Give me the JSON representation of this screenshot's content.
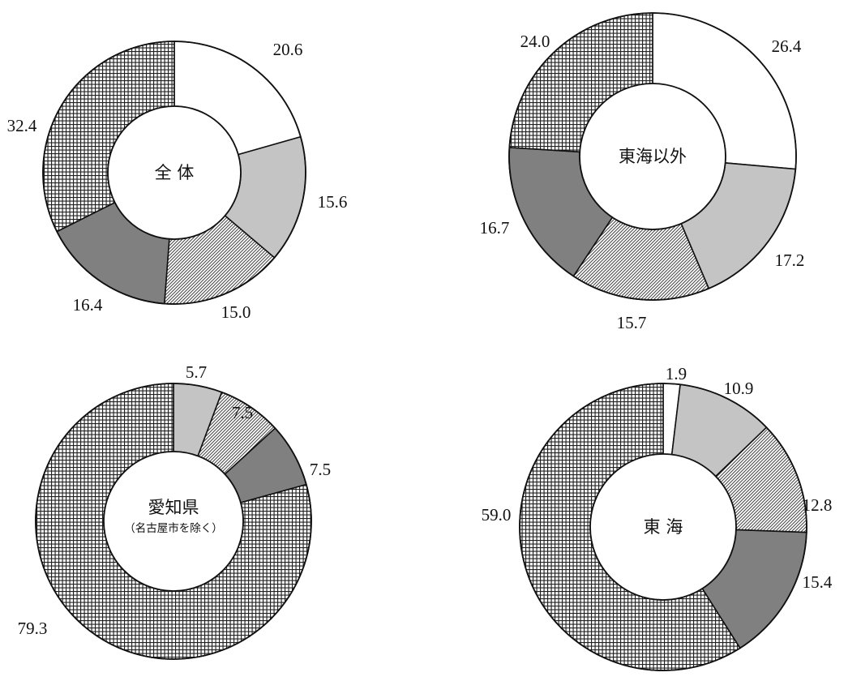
{
  "chart_data": [
    {
      "type": "pie",
      "title": "",
      "center_label": "全 体",
      "center_sublabel": "",
      "categories": [
        "white",
        "light-gray",
        "diagonal-hatch",
        "dark-gray",
        "crosshatch"
      ],
      "values": [
        20.6,
        15.6,
        15.0,
        16.4,
        32.4
      ],
      "value_labels": [
        "20.6",
        "15.6",
        "15.0",
        "16.4",
        "32.4"
      ]
    },
    {
      "type": "pie",
      "title": "",
      "center_label": "東海以外",
      "center_sublabel": "",
      "categories": [
        "white",
        "light-gray",
        "diagonal-hatch",
        "dark-gray",
        "crosshatch"
      ],
      "values": [
        26.4,
        17.2,
        15.7,
        16.7,
        24.0
      ],
      "value_labels": [
        "26.4",
        "17.2",
        "15.7",
        "16.7",
        "24.0"
      ]
    },
    {
      "type": "pie",
      "title": "",
      "center_label": "愛知県",
      "center_sublabel": "（名古屋市を除く）",
      "categories": [
        "white",
        "light-gray",
        "diagonal-hatch",
        "dark-gray",
        "crosshatch"
      ],
      "values": [
        0.0,
        5.7,
        7.5,
        7.5,
        79.3
      ],
      "value_labels": [
        "",
        "5.7",
        "7.5",
        "7.5",
        "79.3"
      ]
    },
    {
      "type": "pie",
      "title": "",
      "center_label": "東 海",
      "center_sublabel": "",
      "categories": [
        "white",
        "light-gray",
        "diagonal-hatch",
        "dark-gray",
        "crosshatch"
      ],
      "values": [
        1.9,
        10.9,
        12.8,
        15.4,
        59.0
      ],
      "value_labels": [
        "1.9",
        "10.9",
        "12.8",
        "15.4",
        "59.0"
      ]
    }
  ],
  "colors": {
    "white": "#ffffff",
    "light_gray": "#c4c4c4",
    "dark_gray": "#808080",
    "outline": "#111111"
  }
}
